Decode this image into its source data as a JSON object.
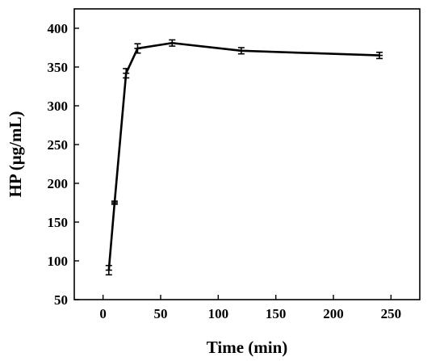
{
  "chart_data": {
    "type": "line",
    "xlabel": "Time (min)",
    "ylabel": "HP (μg/mL)",
    "xlim": [
      -25,
      275
    ],
    "ylim": [
      50,
      425
    ],
    "xticks": [
      0,
      50,
      100,
      150,
      200,
      250
    ],
    "yticks": [
      50,
      100,
      150,
      200,
      250,
      300,
      350,
      400
    ],
    "grid": false,
    "series": [
      {
        "x": [
          5,
          10,
          20,
          30,
          60,
          120,
          240
        ],
        "y": [
          88,
          175,
          342,
          374,
          381,
          371,
          365
        ],
        "err": [
          6,
          2,
          6,
          6,
          4,
          4,
          4
        ],
        "color": "#000000"
      }
    ]
  }
}
